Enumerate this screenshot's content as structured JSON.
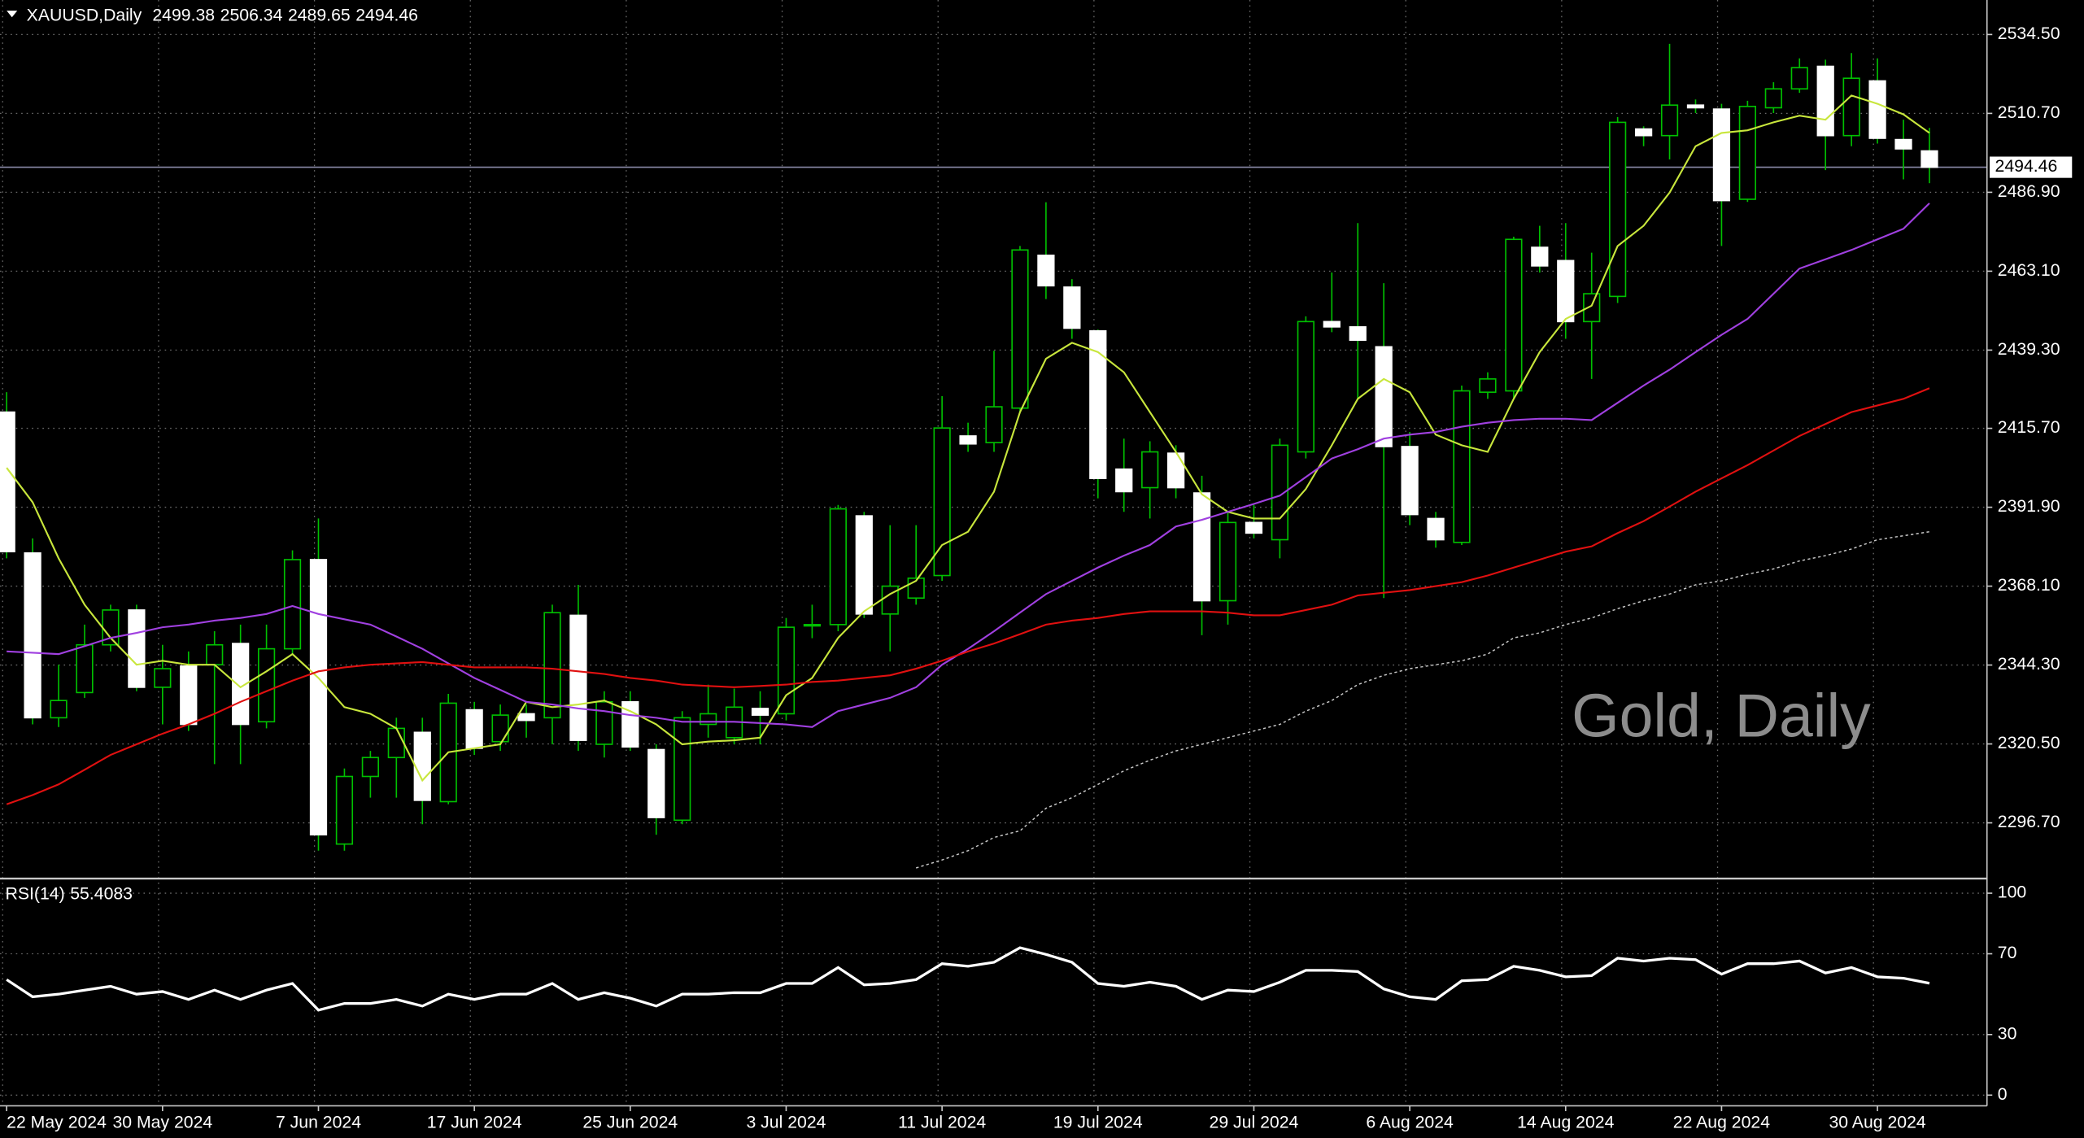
{
  "chart_data": {
    "type": "candlestick",
    "title": "XAUUSD,Daily",
    "watermark": "Gold, Daily",
    "categories": [
      "22 May 2024",
      null,
      null,
      null,
      null,
      null,
      "30 May 2024",
      null,
      null,
      null,
      null,
      null,
      "7 Jun 2024",
      null,
      null,
      null,
      null,
      null,
      "17 Jun 2024",
      null,
      null,
      null,
      null,
      null,
      "25 Jun 2024",
      null,
      null,
      null,
      null,
      null,
      "3 Jul 2024",
      null,
      null,
      null,
      null,
      null,
      "11 Jul 2024",
      null,
      null,
      null,
      null,
      null,
      "19 Jul 2024",
      null,
      null,
      null,
      null,
      null,
      "29 Jul 2024",
      null,
      null,
      null,
      null,
      null,
      "6 Aug 2024",
      null,
      null,
      null,
      null,
      null,
      "14 Aug 2024",
      null,
      null,
      null,
      null,
      null,
      "22 Aug 2024",
      null,
      null,
      null,
      null,
      null,
      "30 Aug 2024",
      null,
      null
    ],
    "open": [
      2420.6,
      2378.1,
      2328.4,
      2336.0,
      2350.4,
      2360.9,
      2337.6,
      2344.0,
      2344.4,
      2350.8,
      2327.2,
      2349.2,
      2376.1,
      2290.3,
      2310.7,
      2316.4,
      2324.0,
      2303.1,
      2330.8,
      2321.2,
      2329.6,
      2328.4,
      2359.3,
      2320.4,
      2333.2,
      2318.8,
      2297.5,
      2326.4,
      2322.4,
      2331.2,
      2329.6,
      2356.1,
      2356.5,
      2389.3,
      2359.7,
      2364.5,
      2371.3,
      2413.4,
      2411.4,
      2421.8,
      2467.9,
      2458.3,
      2445.1,
      2403.4,
      2397.8,
      2408.2,
      2396.2,
      2363.7,
      2387.3,
      2382.1,
      2408.6,
      2447.9,
      2446.3,
      2440.3,
      2410.2,
      2388.5,
      2381.3,
      2426.6,
      2427.0,
      2470.3,
      2466.3,
      2447.9,
      2455.5,
      2506.0,
      2504.0,
      2513.2,
      2512.0,
      2484.8,
      2512.4,
      2518.1,
      2524.9,
      2504.0,
      2520.5,
      2502.8,
      2499.38
    ],
    "high": [
      2426.6,
      2382.5,
      2344.4,
      2356.5,
      2362.5,
      2362.5,
      2350.4,
      2348.4,
      2354.5,
      2356.5,
      2356.5,
      2378.9,
      2388.5,
      2313.1,
      2318.4,
      2328.4,
      2328.4,
      2335.6,
      2333.2,
      2332.4,
      2332.4,
      2362.5,
      2368.5,
      2336.4,
      2336.4,
      2320.4,
      2330.4,
      2338.4,
      2337.2,
      2336.4,
      2358.5,
      2362.5,
      2392.6,
      2390.5,
      2386.5,
      2386.5,
      2425.4,
      2417.4,
      2439.1,
      2470.7,
      2483.9,
      2460.7,
      2445.5,
      2412.6,
      2411.8,
      2410.6,
      2401.4,
      2390.5,
      2392.6,
      2412.6,
      2449.5,
      2462.7,
      2477.6,
      2459.5,
      2414.6,
      2390.5,
      2428.6,
      2432.6,
      2473.5,
      2476.8,
      2477.6,
      2468.7,
      2509.6,
      2506.8,
      2531.7,
      2514.9,
      2513.6,
      2514.5,
      2520.1,
      2527.3,
      2526.9,
      2528.9,
      2527.3,
      2508.8,
      2506.34
    ],
    "low": [
      2376.5,
      2326.4,
      2325.6,
      2334.4,
      2348.4,
      2336.4,
      2326.4,
      2324.4,
      2314.4,
      2314.4,
      2325.2,
      2347.6,
      2288.3,
      2288.3,
      2304.3,
      2304.3,
      2296.3,
      2302.3,
      2317.2,
      2318.4,
      2322.4,
      2320.4,
      2318.4,
      2316.4,
      2318.4,
      2293.1,
      2296.3,
      2322.4,
      2320.4,
      2320.4,
      2327.6,
      2352.4,
      2354.5,
      2358.5,
      2348.4,
      2362.5,
      2369.7,
      2408.6,
      2408.6,
      2420.6,
      2454.7,
      2442.7,
      2394.6,
      2390.5,
      2388.5,
      2394.6,
      2353.3,
      2356.5,
      2382.5,
      2376.5,
      2406.6,
      2444.7,
      2424.6,
      2364.5,
      2386.5,
      2379.7,
      2380.5,
      2424.6,
      2424.6,
      2462.7,
      2442.7,
      2430.6,
      2453.5,
      2500.8,
      2496.8,
      2510.8,
      2470.7,
      2484.0,
      2510.8,
      2516.9,
      2493.6,
      2500.8,
      2501.6,
      2490.8,
      2489.65
    ],
    "close": [
      2378.5,
      2328.4,
      2333.6,
      2350.4,
      2360.9,
      2337.6,
      2343.2,
      2326.4,
      2350.4,
      2326.4,
      2349.2,
      2376.1,
      2293.1,
      2310.7,
      2316.4,
      2325.2,
      2303.5,
      2332.8,
      2319.2,
      2329.2,
      2327.6,
      2360.1,
      2321.6,
      2333.2,
      2319.6,
      2298.3,
      2328.4,
      2329.6,
      2331.6,
      2329.2,
      2355.7,
      2356.5,
      2391.4,
      2359.7,
      2368.1,
      2370.5,
      2415.8,
      2411.0,
      2422.2,
      2469.5,
      2458.7,
      2445.9,
      2400.6,
      2396.6,
      2408.6,
      2397.8,
      2363.7,
      2387.3,
      2384.1,
      2410.6,
      2447.9,
      2446.3,
      2442.3,
      2410.2,
      2389.7,
      2382.1,
      2427.0,
      2430.6,
      2472.7,
      2464.7,
      2447.9,
      2456.3,
      2508.0,
      2504.0,
      2513.2,
      2512.4,
      2484.4,
      2512.8,
      2518.1,
      2524.5,
      2504.0,
      2521.3,
      2503.2,
      2500.0,
      2494.46
    ],
    "bull_color": "#000000",
    "bear_color": "#ffffff",
    "wick_color": "#00c000",
    "ylim": [
      2280.3,
      2544.9
    ],
    "yticks": [
      {
        "value": 2534.5,
        "label": "2534.50"
      },
      {
        "value": 2510.7,
        "label": "2510.70"
      },
      {
        "value": 2486.9,
        "label": "2486.90"
      },
      {
        "value": 2463.1,
        "label": "2463.10"
      },
      {
        "value": 2439.3,
        "label": "2439.30"
      },
      {
        "value": 2415.7,
        "label": "2415.70"
      },
      {
        "value": 2391.9,
        "label": "2391.90"
      },
      {
        "value": 2368.1,
        "label": "2368.10"
      },
      {
        "value": 2344.3,
        "label": "2344.30"
      },
      {
        "value": 2320.5,
        "label": "2320.50"
      },
      {
        "value": 2296.7,
        "label": "2296.70"
      }
    ],
    "grid": true,
    "price_line_color": "#8a8aa8",
    "overlays": [
      {
        "color": "#c8e63c",
        "dashed": false,
        "values": [
          2403.8,
          2393.4,
          2376.5,
          2362.5,
          2352.5,
          2344.4,
          2345.6,
          2344.4,
          2344.4,
          2337.6,
          2342.4,
          2347.6,
          2340.4,
          2331.6,
          2329.6,
          2325.2,
          2309.5,
          2318.0,
          2319.2,
          2320.4,
          2333.2,
          2331.6,
          2332.4,
          2333.6,
          2330.4,
          2326.4,
          2320.4,
          2321.2,
          2321.6,
          2322.4,
          2335.2,
          2340.4,
          2352.5,
          2360.5,
          2365.7,
          2369.7,
          2380.5,
          2384.5,
          2396.6,
          2420.6,
          2436.7,
          2441.5,
          2438.7,
          2432.6,
          2420.6,
          2408.6,
          2395.8,
          2390.5,
          2388.5,
          2388.5,
          2397.4,
          2410.6,
          2424.6,
          2430.6,
          2426.6,
          2413.8,
          2410.6,
          2408.6,
          2424.6,
          2438.7,
          2448.7,
          2452.7,
          2470.7,
          2476.8,
          2486.8,
          2500.8,
          2504.8,
          2505.6,
          2508.0,
          2510.0,
          2508.8,
          2516.1,
          2513.6,
          2510.4,
          2504.8
        ]
      },
      {
        "color": "#a040e0",
        "dashed": false,
        "values": [
          2348.4,
          2348.0,
          2347.6,
          2350.0,
          2352.5,
          2354.0,
          2355.7,
          2356.5,
          2357.7,
          2358.5,
          2359.7,
          2362.1,
          2359.7,
          2358.1,
          2356.5,
          2352.9,
          2349.2,
          2344.8,
          2340.4,
          2336.8,
          2333.2,
          2332.4,
          2331.2,
          2330.4,
          2329.2,
          2328.4,
          2327.2,
          2327.2,
          2327.2,
          2326.8,
          2326.4,
          2325.6,
          2330.4,
          2332.4,
          2334.4,
          2337.6,
          2344.4,
          2349.2,
          2354.5,
          2360.1,
          2365.7,
          2369.7,
          2373.7,
          2377.3,
          2380.5,
          2386.1,
          2388.1,
          2390.5,
          2392.9,
          2395.4,
          2401.0,
          2406.6,
          2409.4,
          2412.6,
          2413.8,
          2414.6,
          2416.2,
          2417.4,
          2418.2,
          2418.6,
          2418.6,
          2418.2,
          2423.4,
          2428.6,
          2433.4,
          2438.7,
          2443.9,
          2448.7,
          2456.3,
          2463.9,
          2466.7,
          2469.5,
          2472.7,
          2475.9,
          2483.6
        ]
      },
      {
        "color": "#e01010",
        "dashed": false,
        "values": [
          2302.3,
          2305.1,
          2308.3,
          2312.7,
          2317.2,
          2320.4,
          2323.6,
          2326.4,
          2329.6,
          2333.2,
          2336.4,
          2339.6,
          2342.4,
          2343.6,
          2344.4,
          2344.8,
          2345.2,
          2344.4,
          2343.6,
          2343.6,
          2343.6,
          2343.2,
          2342.4,
          2341.6,
          2340.4,
          2339.6,
          2338.4,
          2338.0,
          2337.6,
          2338.0,
          2338.4,
          2339.2,
          2339.6,
          2340.4,
          2341.2,
          2343.2,
          2345.6,
          2348.4,
          2350.8,
          2353.6,
          2356.5,
          2357.7,
          2358.5,
          2359.7,
          2360.5,
          2360.5,
          2360.5,
          2360.1,
          2359.3,
          2359.3,
          2360.9,
          2362.5,
          2365.3,
          2366.1,
          2366.9,
          2368.1,
          2369.3,
          2371.3,
          2373.7,
          2376.1,
          2378.5,
          2380.1,
          2384.1,
          2387.7,
          2392.1,
          2396.6,
          2400.6,
          2404.6,
          2409.0,
          2413.4,
          2417.0,
          2420.6,
          2422.6,
          2424.6,
          2427.8
        ]
      },
      {
        "color": "#c8c8c8",
        "dashed": true,
        "values": [
          null,
          null,
          null,
          null,
          null,
          null,
          null,
          null,
          null,
          null,
          null,
          null,
          null,
          null,
          null,
          null,
          null,
          null,
          null,
          null,
          null,
          null,
          null,
          null,
          null,
          null,
          null,
          null,
          null,
          null,
          null,
          null,
          null,
          null,
          null,
          2283.1,
          2285.5,
          2288.3,
          2292.3,
          2294.3,
          2301.1,
          2304.3,
          2308.3,
          2312.4,
          2315.6,
          2318.4,
          2320.4,
          2322.4,
          2324.4,
          2326.4,
          2330.4,
          2333.6,
          2338.4,
          2341.2,
          2343.2,
          2344.4,
          2345.6,
          2347.6,
          2352.5,
          2354.0,
          2356.5,
          2358.5,
          2361.3,
          2363.7,
          2365.7,
          2368.5,
          2369.7,
          2371.7,
          2373.3,
          2375.7,
          2377.3,
          2379.3,
          2382.1,
          2383.3,
          2384.5
        ]
      }
    ],
    "rsi": {
      "label": "RSI(14)",
      "color": "#ffffff",
      "ylim": [
        -5.3,
        106.6
      ],
      "yticks": [
        100,
        70,
        30,
        0
      ],
      "values": [
        57.2,
        48.7,
        50.0,
        52.0,
        53.9,
        50.0,
        51.3,
        47.4,
        52.0,
        47.4,
        52.0,
        55.3,
        42.1,
        45.4,
        45.4,
        47.4,
        44.1,
        50.0,
        47.4,
        50.0,
        50.0,
        55.3,
        47.4,
        50.7,
        48.0,
        44.1,
        50.0,
        50.0,
        50.7,
        50.7,
        55.3,
        55.3,
        63.2,
        54.6,
        55.3,
        57.2,
        65.1,
        63.8,
        65.8,
        73.0,
        69.7,
        65.8,
        55.3,
        53.9,
        55.9,
        53.9,
        47.4,
        52.0,
        51.3,
        55.9,
        61.8,
        61.8,
        61.2,
        52.6,
        48.7,
        47.4,
        56.6,
        57.2,
        63.8,
        61.8,
        58.6,
        59.2,
        67.8,
        66.4,
        67.8,
        67.1,
        59.9,
        65.1,
        65.1,
        66.4,
        60.5,
        63.2,
        58.6,
        57.9,
        55.4083
      ]
    }
  }
}
